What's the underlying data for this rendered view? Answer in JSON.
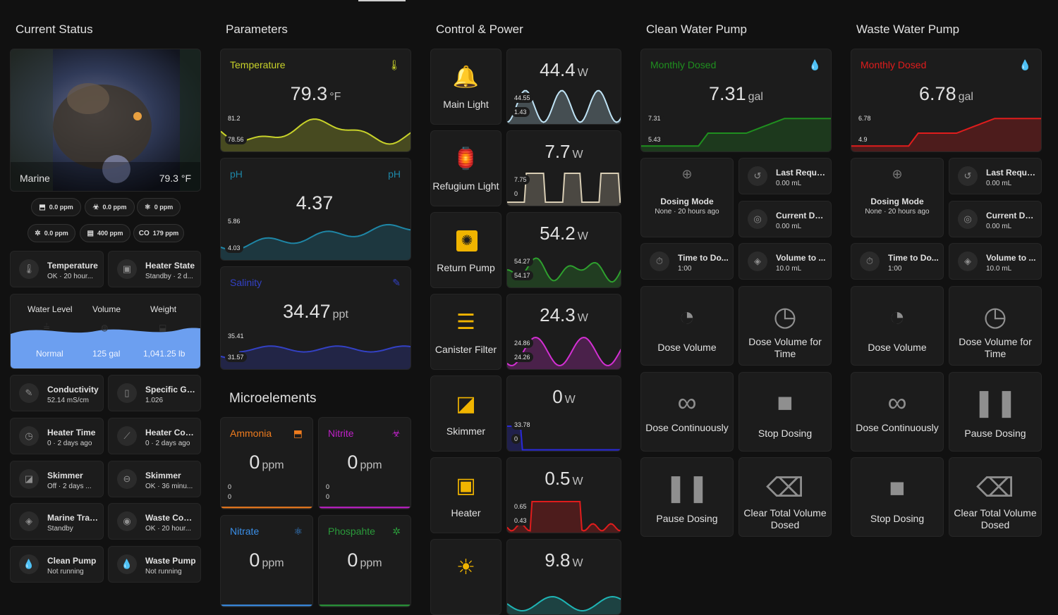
{
  "columns": {
    "status": "Current Status",
    "parameters": "Parameters",
    "control": "Control & Power",
    "clean": "Clean Water Pump",
    "waste": "Waste Water Pump"
  },
  "camera": {
    "name": "Marine",
    "temp": "79.3 °F"
  },
  "chips": [
    {
      "icon": "bottle-icon",
      "glyph": "⬒",
      "label": "0.0 ppm"
    },
    {
      "icon": "biohazard-icon",
      "glyph": "☣",
      "label": "0.0 ppm"
    },
    {
      "icon": "molecule-icon",
      "glyph": "⚛",
      "label": "0 ppm"
    },
    {
      "icon": "virus-icon",
      "glyph": "✲",
      "label": "0.0 ppm"
    },
    {
      "icon": "gauge-icon",
      "glyph": "▤",
      "label": "400 ppm"
    },
    {
      "icon": "co2-icon",
      "glyph": "CO",
      "label": "179 ppm"
    }
  ],
  "status_tiles": [
    {
      "title": "Temperature",
      "sub": "OK · 20 hour...",
      "icon": "thermometer-icon",
      "glyph": "🌡"
    },
    {
      "title": "Heater State",
      "sub": "Standby · 2 d...",
      "icon": "heater-icon",
      "glyph": "▣"
    },
    {
      "title": "Conductivity",
      "sub": "52.14 mS/cm",
      "icon": "pipette-icon",
      "glyph": "✎"
    },
    {
      "title": "Specific Gr...",
      "sub": "1.026",
      "icon": "cup-icon",
      "glyph": "▯"
    },
    {
      "title": "Heater Time",
      "sub": "0 · 2 days ago",
      "icon": "clock-icon",
      "glyph": "◷"
    },
    {
      "title": "Heater Cou...",
      "sub": "0 · 2 days ago",
      "icon": "chart-line-icon",
      "glyph": "⟋"
    },
    {
      "title": "Skimmer",
      "sub": "Off · 2 days ...",
      "icon": "skimmer-icon",
      "glyph": "◪"
    },
    {
      "title": "Skimmer",
      "sub": "OK · 36 minu...",
      "icon": "pill-icon",
      "glyph": "⊖"
    },
    {
      "title": "Marine Trace",
      "sub": "Standby",
      "icon": "dose-icon",
      "glyph": "◈"
    },
    {
      "title": "Waste Cont...",
      "sub": "OK · 20 hour...",
      "icon": "drop-icon",
      "glyph": "◉"
    },
    {
      "title": "Clean Pump",
      "sub": "Not running",
      "icon": "drop-plus-icon",
      "glyph": "💧"
    },
    {
      "title": "Waste Pump",
      "sub": "Not running",
      "icon": "drop-minus-icon",
      "glyph": "💧"
    }
  ],
  "water": {
    "headers": [
      "Water Level",
      "Volume",
      "Weight"
    ],
    "values": [
      "Normal",
      "125 gal",
      "1,041.25 lb"
    ],
    "color": "#6c9ff0"
  },
  "gauges": {
    "temperature": {
      "name": "Temperature",
      "value": "79.3",
      "unit": "°F",
      "color": "#c8d22a",
      "max": "81.2",
      "min": "78.56"
    },
    "ph": {
      "name": "pH",
      "value": "4.37",
      "unit": "",
      "color": "#1e86a6",
      "max": "5.86",
      "min": "4.03",
      "icon_text": "pH"
    },
    "salinity": {
      "name": "Salinity",
      "value": "34.47",
      "unit": "ppt",
      "color": "#3341c4",
      "max": "35.41",
      "min": "31.57"
    }
  },
  "micro_title": "Microelements",
  "micro": [
    {
      "name": "Ammonia",
      "value": "0",
      "unit": "ppm",
      "color": "#f07c1e",
      "max": "0",
      "min": "0"
    },
    {
      "name": "Nitrite",
      "value": "0",
      "unit": "ppm",
      "color": "#c021c9",
      "max": "0",
      "min": "0"
    },
    {
      "name": "Nitrate",
      "value": "0",
      "unit": "ppm",
      "color": "#3a8fe8",
      "max": "",
      "min": ""
    },
    {
      "name": "Phospahte",
      "value": "0",
      "unit": "ppm",
      "color": "#2a9a3a",
      "max": "",
      "min": ""
    }
  ],
  "controls": [
    {
      "label": "Main Light",
      "icon": "ceiling-light-icon",
      "glyph": "🔔",
      "power": "44.4",
      "unit": "W",
      "color": "#bfe3f5",
      "max": "44.55",
      "min": "1.43"
    },
    {
      "label": "Refugium Light",
      "icon": "lantern-icon",
      "glyph": "🏮",
      "power": "7.7",
      "unit": "W",
      "color": "#d8cdb4",
      "max": "7.75",
      "min": "0"
    },
    {
      "label": "Return Pump",
      "icon": "pump-icon",
      "glyph": "✺",
      "power": "54.2",
      "unit": "W",
      "color": "#2ea02e",
      "max": "54.27",
      "min": "54.17"
    },
    {
      "label": "Canister Filter",
      "icon": "filter-icon",
      "glyph": "☰",
      "power": "24.3",
      "unit": "W",
      "color": "#d42fd4",
      "max": "24.86",
      "min": "24.26"
    },
    {
      "label": "Skimmer",
      "icon": "skimmer-icon",
      "glyph": "◪",
      "power": "0",
      "unit": "W",
      "color": "#2a2ad8",
      "max": "33.78",
      "min": "0"
    },
    {
      "label": "Heater",
      "icon": "heater-icon",
      "glyph": "▣",
      "power": "0.5",
      "unit": "W",
      "color": "#e01c1c",
      "max": "0.65",
      "min": "0.43"
    },
    {
      "label": "",
      "icon": "sun-wave-icon",
      "glyph": "☀",
      "power": "9.8",
      "unit": "W",
      "color": "#1fb5b5",
      "max": "",
      "min": ""
    }
  ],
  "clean": {
    "monthly": {
      "name": "Monthly Dosed",
      "value": "7.31",
      "unit": "gal",
      "color": "#1f8f1f",
      "max": "7.31",
      "min": "5.43"
    },
    "mode": {
      "title": "Dosing Mode",
      "sub": "None · 20 hours ago"
    },
    "tiles": [
      {
        "title": "Last Reque...",
        "sub": "0.00 mL",
        "icon": "history-icon",
        "glyph": "↺"
      },
      {
        "title": "Current Do...",
        "sub": "0.00 mL",
        "icon": "target-icon",
        "glyph": "◎"
      },
      {
        "title": "Time to Do...",
        "sub": "1:00",
        "icon": "timer-icon",
        "glyph": "⏱"
      },
      {
        "title": "Volume to ...",
        "sub": "10.0 mL",
        "icon": "dose-icon",
        "glyph": "◈"
      }
    ],
    "buttons": [
      {
        "label": "Dose Volume",
        "icon": "dose-volume-icon",
        "glyph": "◔"
      },
      {
        "label": "Dose Volume for Time",
        "icon": "clock-icon",
        "glyph": "◷"
      },
      {
        "label": "Dose Continuously",
        "icon": "infinity-icon",
        "glyph": "∞"
      },
      {
        "label": "Stop Dosing",
        "icon": "stop-icon",
        "glyph": "■"
      },
      {
        "label": "Pause Dosing",
        "icon": "pause-icon",
        "glyph": "❚❚"
      },
      {
        "label": "Clear Total Volume Dosed",
        "icon": "backspace-icon",
        "glyph": "⌫"
      }
    ]
  },
  "waste": {
    "monthly": {
      "name": "Monthly Dosed",
      "value": "6.78",
      "unit": "gal",
      "color": "#e01c1c",
      "max": "6.78",
      "min": "4.9"
    },
    "mode": {
      "title": "Dosing Mode",
      "sub": "None · 20 hours ago"
    },
    "tiles": [
      {
        "title": "Last Reque...",
        "sub": "0.00 mL",
        "icon": "history-icon",
        "glyph": "↺"
      },
      {
        "title": "Current Do...",
        "sub": "0.00 mL",
        "icon": "target-icon",
        "glyph": "◎"
      },
      {
        "title": "Time to Do...",
        "sub": "1:00",
        "icon": "timer-icon",
        "glyph": "⏱"
      },
      {
        "title": "Volume to ...",
        "sub": "10.0 mL",
        "icon": "dose-icon",
        "glyph": "◈"
      }
    ],
    "buttons": [
      {
        "label": "Dose Volume",
        "icon": "dose-volume-icon",
        "glyph": "◔"
      },
      {
        "label": "Dose Volume for Time",
        "icon": "clock-icon",
        "glyph": "◷"
      },
      {
        "label": "Dose Continuously",
        "icon": "infinity-icon",
        "glyph": "∞"
      },
      {
        "label": "Pause Dosing",
        "icon": "pause-icon",
        "glyph": "❚❚"
      },
      {
        "label": "Stop Dosing",
        "icon": "stop-icon",
        "glyph": "■"
      },
      {
        "label": "Clear Total Volume Dosed",
        "icon": "backspace-icon",
        "glyph": "⌫"
      }
    ]
  }
}
